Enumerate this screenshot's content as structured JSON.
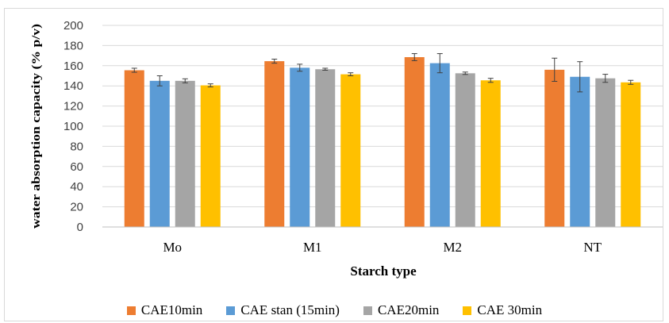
{
  "chart_data": {
    "type": "bar",
    "xlabel": "Starch type",
    "ylabel": "water absorption capacity (% p/v)",
    "ylim": [
      0,
      200
    ],
    "yticks": [
      0,
      20,
      40,
      60,
      80,
      100,
      120,
      140,
      160,
      180,
      200
    ],
    "grid": "horizontal",
    "legend_position": "bottom",
    "categories": [
      "Mo",
      "M1",
      "M2",
      "NT"
    ],
    "series": [
      {
        "name": "CAE10min",
        "color": "#ED7D31",
        "values": [
          155.5,
          164.5,
          168.5,
          156.0
        ],
        "errors": [
          2.0,
          2.0,
          3.5,
          11.5
        ]
      },
      {
        "name": "CAE stan (15min)",
        "color": "#5B9BD5",
        "values": [
          145.0,
          158.0,
          162.5,
          149.0
        ],
        "errors": [
          5.0,
          3.5,
          9.5,
          15.0
        ]
      },
      {
        "name": "CAE20min",
        "color": "#A5A5A5",
        "values": [
          145.0,
          156.5,
          152.5,
          147.5
        ],
        "errors": [
          2.0,
          1.0,
          1.2,
          4.0
        ]
      },
      {
        "name": "CAE 30min",
        "color": "#FFC000",
        "values": [
          140.5,
          151.5,
          145.5,
          143.5
        ],
        "errors": [
          1.5,
          1.5,
          2.0,
          2.0
        ]
      }
    ]
  }
}
